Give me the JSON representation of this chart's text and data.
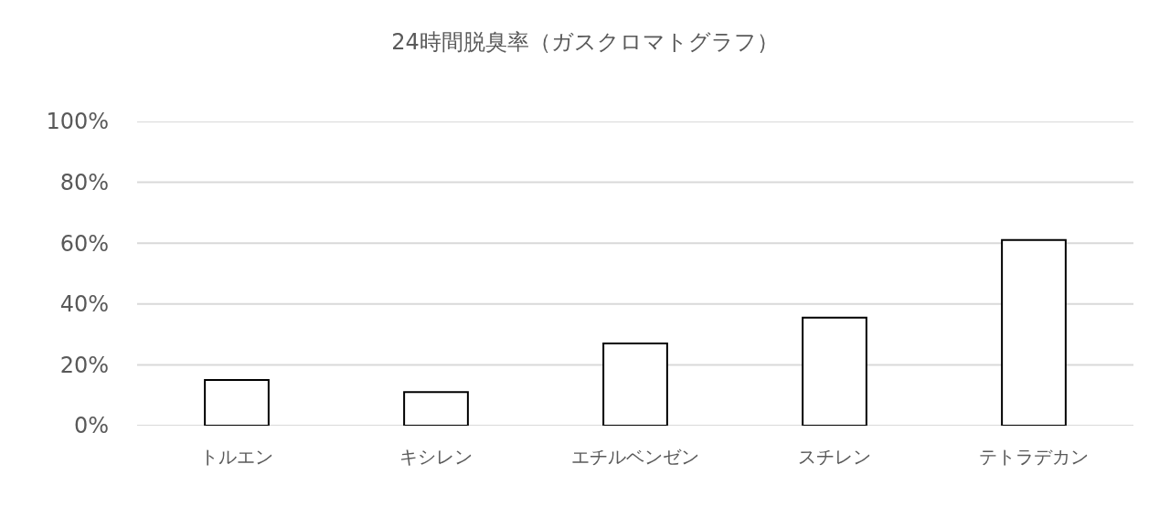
{
  "chart_data": {
    "type": "bar",
    "title": "24時間脱臭率（ガスクロマトグラフ）",
    "categories": [
      "トルエン",
      "キシレン",
      "エチルベンゼン",
      "スチレン",
      "テトラデカン"
    ],
    "values": [
      15,
      11,
      27,
      35.5,
      61
    ],
    "color": "#ffffff",
    "ylim": [
      0,
      100
    ],
    "yticks": [
      {
        "value": 0,
        "label": "0%"
      },
      {
        "value": 20,
        "label": "20%"
      },
      {
        "value": 40,
        "label": "40%"
      },
      {
        "value": 60,
        "label": "60%"
      },
      {
        "value": 80,
        "label": "80%"
      },
      {
        "value": 100,
        "label": "100%"
      }
    ],
    "grid": "y"
  }
}
